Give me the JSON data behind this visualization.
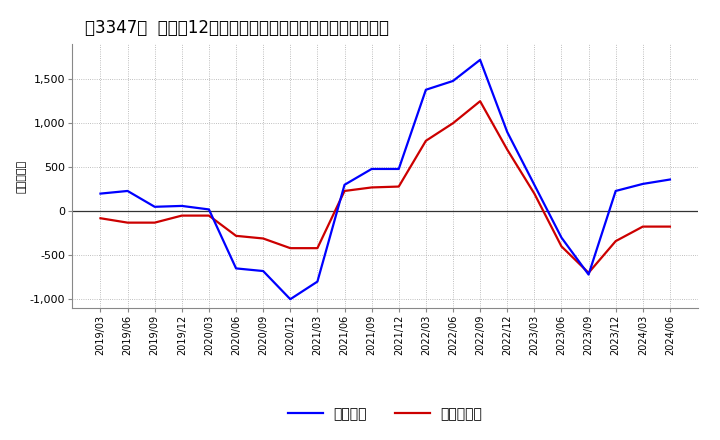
{
  "title": "［3347］  利益の12か月移動合計の対前年同期増減額の推移",
  "ylabel": "（百万円）",
  "background_color": "#ffffff",
  "plot_bg_color": "#ffffff",
  "grid_color": "#aaaaaa",
  "dates": [
    "2019/03",
    "2019/06",
    "2019/09",
    "2019/12",
    "2020/03",
    "2020/06",
    "2020/09",
    "2020/12",
    "2021/03",
    "2021/06",
    "2021/09",
    "2021/12",
    "2022/03",
    "2022/06",
    "2022/09",
    "2022/12",
    "2023/03",
    "2023/06",
    "2023/09",
    "2023/12",
    "2024/03",
    "2024/06"
  ],
  "keijo_rieki": [
    200,
    230,
    50,
    60,
    20,
    -650,
    -680,
    -1000,
    -800,
    300,
    480,
    480,
    1380,
    1480,
    1720,
    900,
    300,
    -300,
    -720,
    230,
    310,
    360
  ],
  "touki_jun_rieki": [
    -80,
    -130,
    -130,
    -50,
    -50,
    -280,
    -310,
    -420,
    -420,
    230,
    270,
    280,
    800,
    1000,
    1250,
    700,
    200,
    -400,
    -700,
    -340,
    -175,
    -175
  ],
  "line_color_keijo": "#0000ff",
  "line_color_touki": "#cc0000",
  "ylim": [
    -1100,
    1900
  ],
  "yticks": [
    -1000,
    -500,
    0,
    500,
    1000,
    1500
  ],
  "legend_keijo": "経常利益",
  "legend_touki": "当期純利益",
  "title_fontsize": 12,
  "axis_fontsize": 8,
  "legend_fontsize": 10
}
